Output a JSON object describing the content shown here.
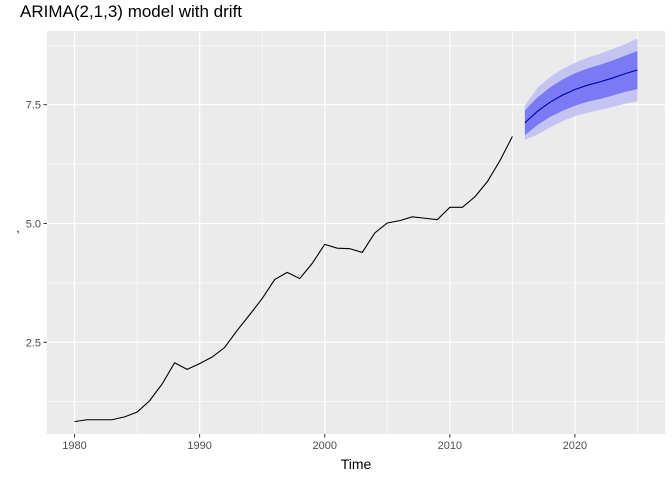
{
  "chart_data": {
    "type": "line",
    "title": "ARIMA(2,1,3) model with drift",
    "xlabel": "Time",
    "ylabel": ",",
    "xlim": [
      1977.8,
      2027.2
    ],
    "ylim": [
      0.57,
      9.05
    ],
    "x_ticks": [
      1980,
      1990,
      2000,
      2010,
      2020
    ],
    "x_tick_labels": [
      "1980",
      "1990",
      "2000",
      "2010",
      "2020"
    ],
    "y_ticks": [
      2.5,
      5.0,
      7.5
    ],
    "y_tick_labels": [
      "2.5",
      "5.0",
      "7.5"
    ],
    "grid": true,
    "background": "#ebebeb",
    "series": [
      {
        "kind": "observed",
        "color": "#000000",
        "x": [
          1980,
          1981,
          1982,
          1983,
          1984,
          1985,
          1986,
          1987,
          1988,
          1989,
          1990,
          1991,
          1992,
          1993,
          1994,
          1995,
          1996,
          1997,
          1998,
          1999,
          2000,
          2001,
          2002,
          2003,
          2004,
          2005,
          2006,
          2007,
          2008,
          2009,
          2010,
          2011,
          2012,
          2013,
          2014,
          2015
        ],
        "values": [
          0.83,
          0.87,
          0.87,
          0.87,
          0.93,
          1.03,
          1.27,
          1.62,
          2.07,
          1.93,
          2.05,
          2.19,
          2.39,
          2.75,
          3.08,
          3.42,
          3.82,
          3.97,
          3.84,
          4.16,
          4.56,
          4.48,
          4.47,
          4.39,
          4.8,
          5.01,
          5.06,
          5.14,
          5.11,
          5.08,
          5.34,
          5.34,
          5.56,
          5.88,
          6.32,
          6.83
        ]
      },
      {
        "kind": "forecast",
        "color": "#0000aa",
        "x": [
          2016,
          2017,
          2018,
          2019,
          2020,
          2021,
          2022,
          2023,
          2024,
          2025
        ],
        "values": [
          7.12,
          7.36,
          7.55,
          7.7,
          7.82,
          7.91,
          7.98,
          8.06,
          8.15,
          8.23
        ],
        "lower80": [
          6.86,
          7.07,
          7.24,
          7.37,
          7.48,
          7.56,
          7.62,
          7.69,
          7.77,
          7.83
        ],
        "upper80": [
          7.38,
          7.65,
          7.86,
          8.03,
          8.16,
          8.26,
          8.34,
          8.43,
          8.53,
          8.63
        ],
        "lower95": [
          6.76,
          6.87,
          7.02,
          7.15,
          7.26,
          7.33,
          7.39,
          7.45,
          7.52,
          7.57
        ],
        "upper95": [
          7.48,
          7.85,
          8.08,
          8.25,
          8.38,
          8.49,
          8.57,
          8.67,
          8.77,
          8.89
        ],
        "band80_color": "#7a7af4",
        "band95_color": "#c4c4f2"
      }
    ]
  }
}
